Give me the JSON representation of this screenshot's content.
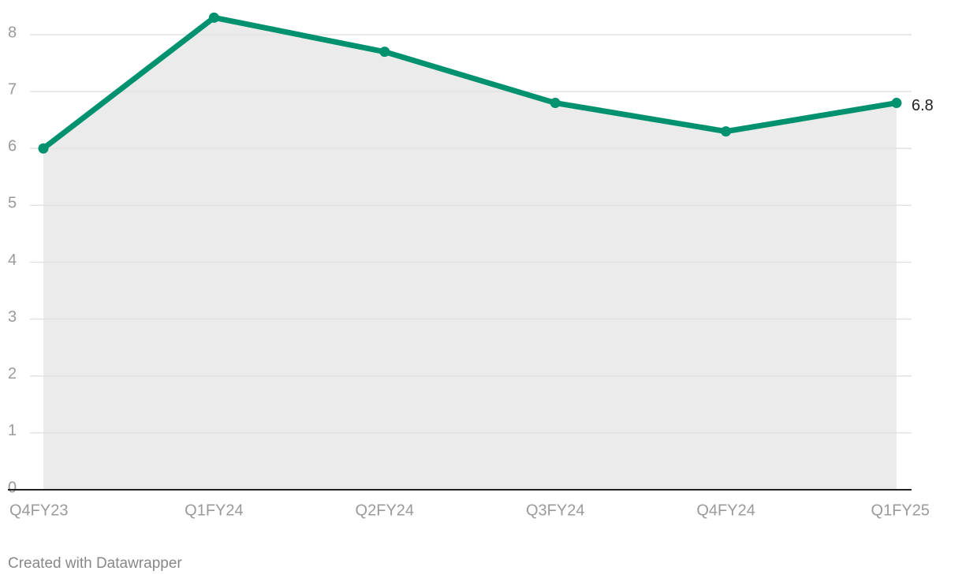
{
  "chart_data": {
    "type": "line",
    "area": true,
    "categories": [
      "Q4FY23",
      "Q1FY24",
      "Q2FY24",
      "Q3FY24",
      "Q4FY24",
      "Q1FY25"
    ],
    "values": [
      6.0,
      8.3,
      7.7,
      6.8,
      6.3,
      6.8
    ],
    "color": "#00916e",
    "area_color": "#ebebeb",
    "ylim": [
      0,
      8
    ],
    "yticks": [
      0,
      1,
      2,
      3,
      4,
      5,
      6,
      7,
      8
    ],
    "grid": true,
    "label_last": true,
    "footer": "Created with Datawrapper"
  }
}
